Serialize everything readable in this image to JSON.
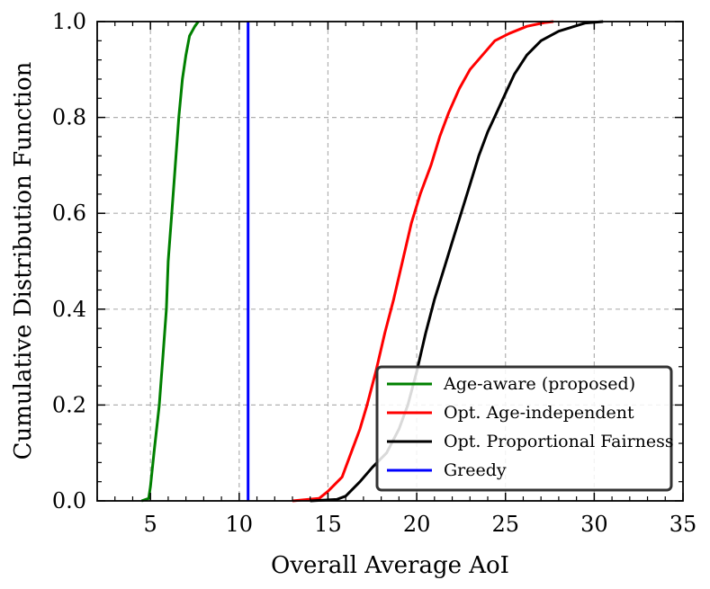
{
  "chart_data": {
    "type": "line",
    "title": "",
    "xlabel": "Overall Average AoI",
    "ylabel": "Cumulative Distribution Function",
    "xlim": [
      2,
      35
    ],
    "ylim": [
      0,
      1
    ],
    "x_ticks": [
      5,
      10,
      15,
      20,
      25,
      30,
      35
    ],
    "y_ticks": [
      0.0,
      0.2,
      0.4,
      0.6,
      0.8,
      1.0
    ],
    "x_tick_labels": [
      "5",
      "10",
      "15",
      "20",
      "25",
      "30",
      "35"
    ],
    "y_tick_labels": [
      "0.0",
      "0.2",
      "0.4",
      "0.6",
      "0.8",
      "1.0"
    ],
    "grid": true,
    "legend_position": "bottom-right",
    "series": [
      {
        "name": "Age-aware (proposed)",
        "color": "#008000",
        "x": [
          4.5,
          4.9,
          5.0,
          5.2,
          5.5,
          5.7,
          5.9,
          6.0,
          6.2,
          6.4,
          6.6,
          6.8,
          7.0,
          7.2,
          7.5,
          7.7
        ],
        "y": [
          0.0,
          0.005,
          0.03,
          0.1,
          0.2,
          0.3,
          0.4,
          0.5,
          0.6,
          0.7,
          0.8,
          0.88,
          0.93,
          0.97,
          0.99,
          1.0
        ]
      },
      {
        "name": "Opt. Age-independent",
        "color": "#ff0000",
        "x": [
          13.0,
          14.5,
          15.0,
          15.8,
          16.3,
          16.8,
          17.2,
          17.7,
          18.2,
          18.7,
          19.2,
          19.7,
          20.2,
          20.8,
          21.3,
          21.8,
          22.4,
          23.0,
          23.7,
          24.4,
          25.2,
          26.2,
          27.2,
          27.7
        ],
        "y": [
          0.0,
          0.005,
          0.02,
          0.05,
          0.1,
          0.15,
          0.2,
          0.27,
          0.35,
          0.42,
          0.5,
          0.58,
          0.64,
          0.7,
          0.76,
          0.81,
          0.86,
          0.9,
          0.93,
          0.96,
          0.975,
          0.99,
          0.998,
          1.0
        ]
      },
      {
        "name": "Opt. Proportional Fairness",
        "color": "#000000",
        "x": [
          14.0,
          15.5,
          16.0,
          16.8,
          17.5,
          18.3,
          19.0,
          19.5,
          20.0,
          20.5,
          21.0,
          21.5,
          22.0,
          22.5,
          23.0,
          23.5,
          24.0,
          24.5,
          25.0,
          25.5,
          26.2,
          27.0,
          28.0,
          29.5,
          30.5
        ],
        "y": [
          0.0,
          0.003,
          0.01,
          0.04,
          0.07,
          0.1,
          0.15,
          0.2,
          0.27,
          0.35,
          0.42,
          0.48,
          0.54,
          0.6,
          0.66,
          0.72,
          0.77,
          0.81,
          0.85,
          0.89,
          0.93,
          0.96,
          0.98,
          0.997,
          1.0
        ]
      },
      {
        "name": "Greedy",
        "color": "#0000ff",
        "x": [
          10.5,
          10.5
        ],
        "y": [
          0.0,
          1.0
        ]
      }
    ]
  }
}
